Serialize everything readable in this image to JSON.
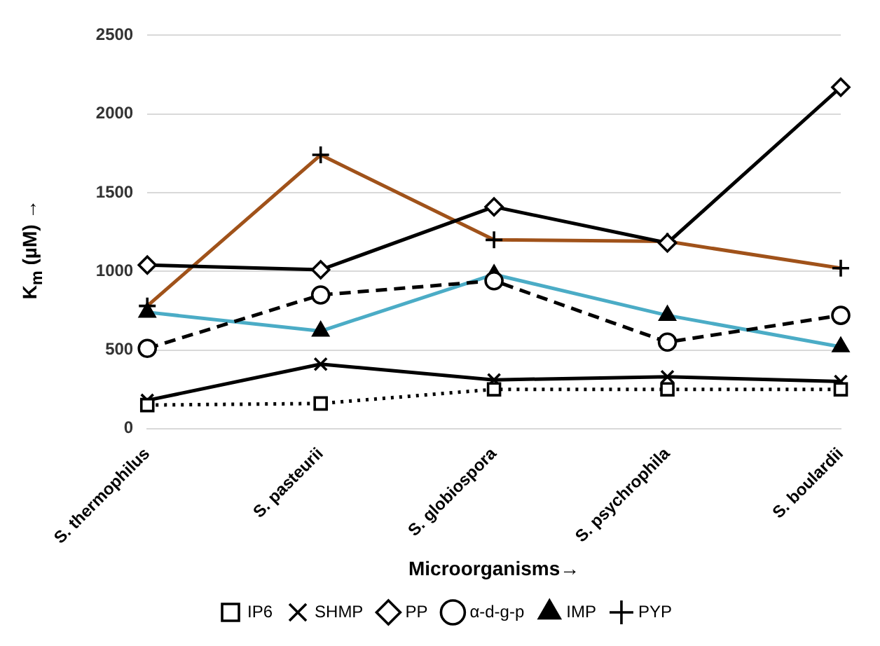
{
  "chart_data": {
    "type": "line",
    "xlabel": "Microorganisms→",
    "ylabel": "K$_{m}$ (µM) →",
    "categories": [
      "S. thermophilus",
      "S. pasteurii",
      "S. globiospora",
      "S. psychrophila",
      "S. boulardii"
    ],
    "series": [
      {
        "name": "IP6",
        "color": "#000000",
        "marker": "square",
        "line_style": "dotted",
        "values": [
          150,
          160,
          250,
          250,
          250
        ]
      },
      {
        "name": "SHMP",
        "color": "#000000",
        "marker": "cross",
        "line_style": "solid",
        "values": [
          180,
          410,
          310,
          330,
          300
        ]
      },
      {
        "name": "PP",
        "color": "#000000",
        "marker": "diamond",
        "line_style": "solid",
        "values": [
          1040,
          1010,
          1410,
          1180,
          2170
        ]
      },
      {
        "name": "α-d-g-p",
        "color": "#000000",
        "marker": "circle",
        "line_style": "dashed",
        "values": [
          510,
          850,
          940,
          550,
          720
        ]
      },
      {
        "name": "IMP",
        "color": "#4bacc6",
        "marker": "triangle",
        "line_style": "solid",
        "values": [
          740,
          620,
          980,
          720,
          520
        ]
      },
      {
        "name": "PYP",
        "color": "#a0521a",
        "marker": "plus",
        "line_style": "solid",
        "values": [
          780,
          1740,
          1200,
          1190,
          1020
        ]
      }
    ],
    "ylim": [
      0,
      2500
    ],
    "yticks": [
      0,
      500,
      1000,
      1500,
      2000,
      2500
    ],
    "grid": "y",
    "legend": "bottom"
  }
}
